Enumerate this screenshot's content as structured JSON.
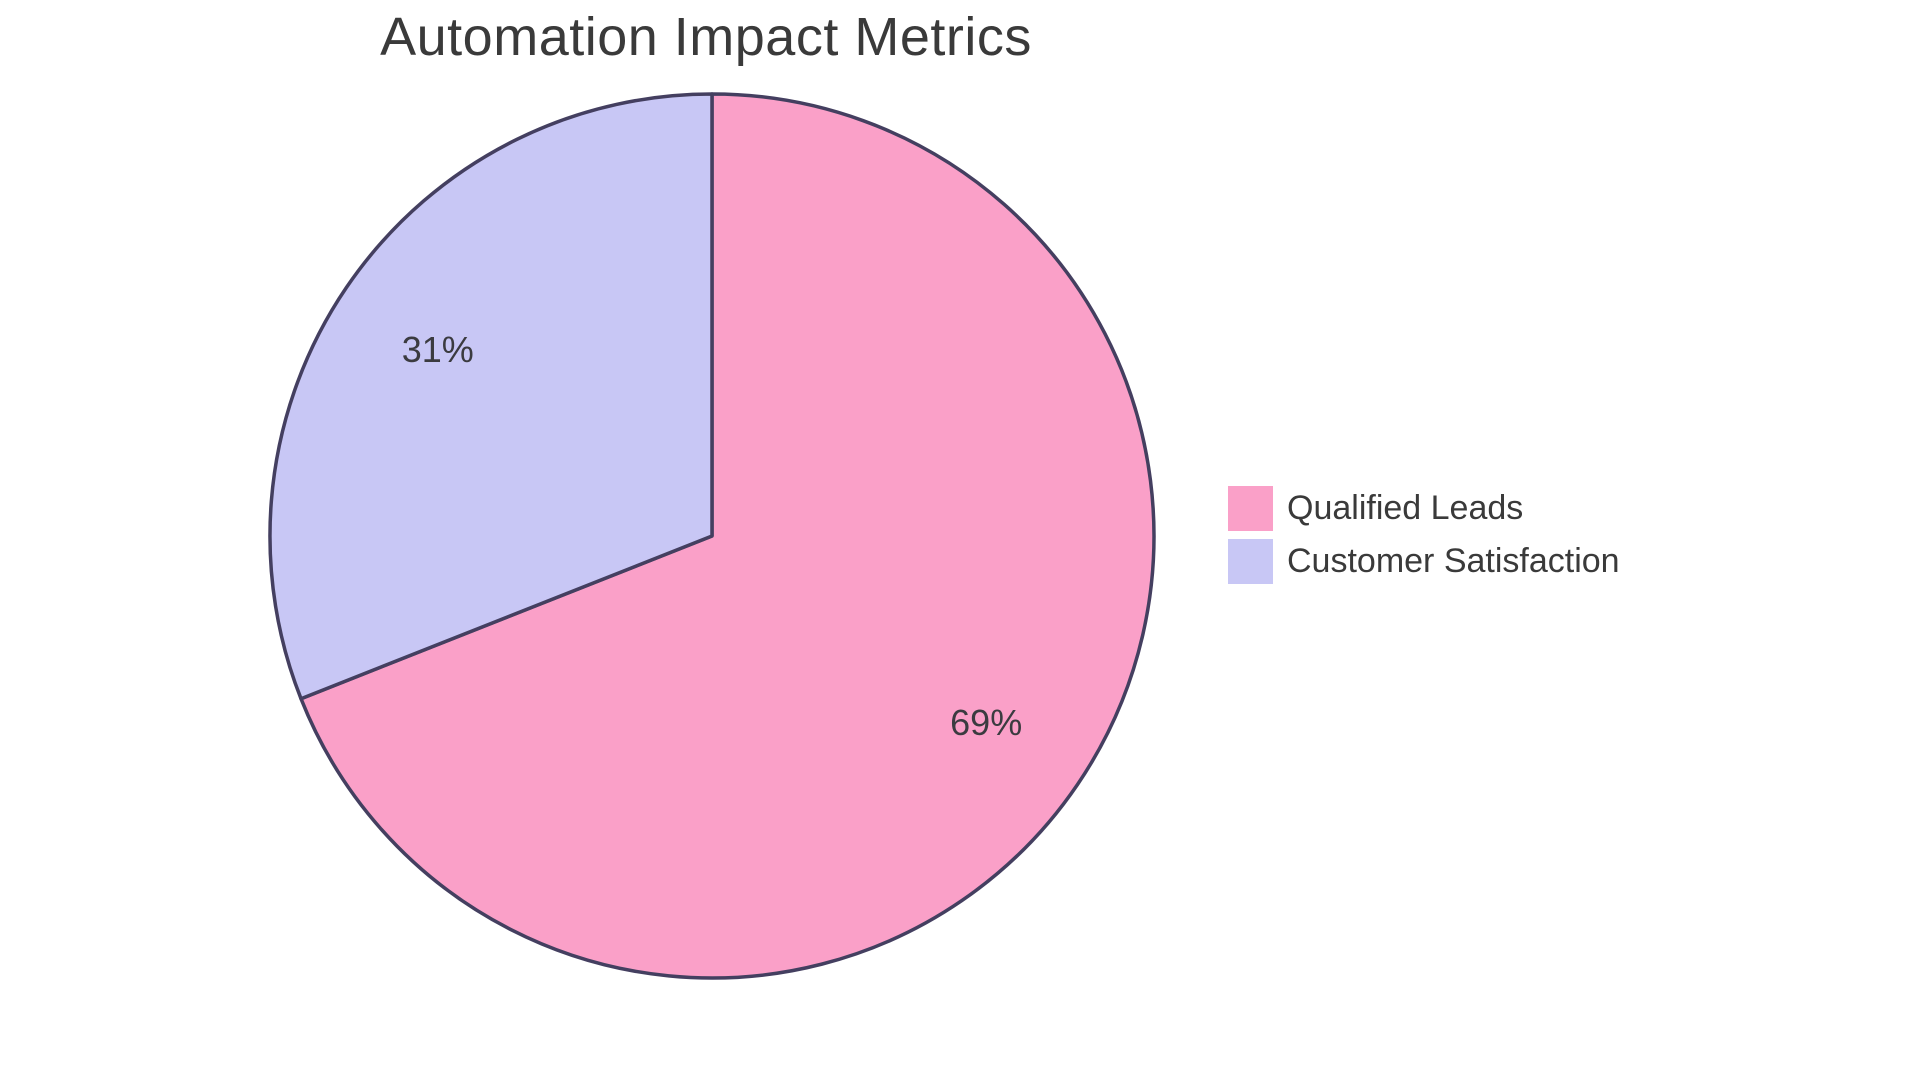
{
  "chart_data": {
    "type": "pie",
    "title": "Automation Impact Metrics",
    "labels": [
      "Qualified Leads",
      "Customer Satisfaction"
    ],
    "values": [
      69,
      31
    ],
    "slice_labels": [
      "69%",
      "31%"
    ],
    "colors": [
      "#FAA0C8",
      "#C8C7F5"
    ],
    "stroke_color": "#443F60",
    "stroke_width": 3.5,
    "start_angle": "top",
    "direction": "clockwise",
    "legend_position": "right",
    "center": [
      712,
      536
    ],
    "radius": 442,
    "label_radius_ratio": 0.75
  },
  "legend": {
    "items": [
      {
        "label": "Qualified Leads",
        "color": "#FAA0C8"
      },
      {
        "label": "Customer Satisfaction",
        "color": "#C8C7F5"
      }
    ]
  }
}
